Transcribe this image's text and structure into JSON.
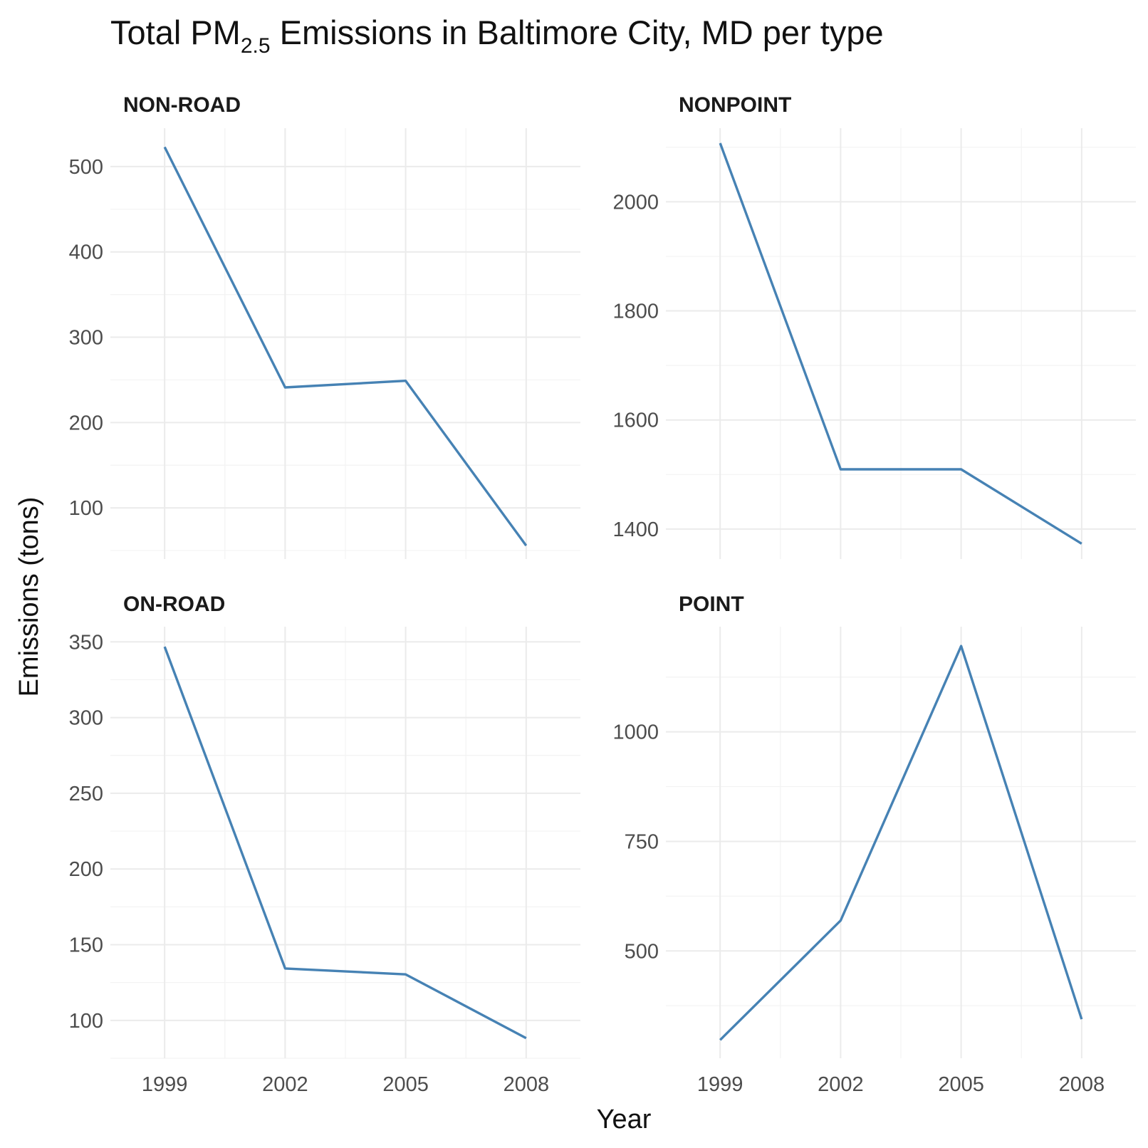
{
  "title": {
    "prefix": "Total PM",
    "subscript": "2.5",
    "suffix": " Emissions in Baltimore City, MD per type"
  },
  "xlabel": "Year",
  "ylabel": "Emissions (tons)",
  "colors": {
    "line": "#4682b4"
  },
  "chart_data": {
    "type": "line",
    "layout": "facet-grid-2x2",
    "grid": true,
    "legend": "none",
    "x": [
      1999,
      2002,
      2005,
      2008
    ],
    "x_ticks": [
      "1999",
      "2002",
      "2005",
      "2008"
    ],
    "panels": [
      {
        "name": "NON-ROAD",
        "values": [
          522.9,
          241.2,
          248.9,
          55.8
        ],
        "ylim": [
          40,
          545
        ],
        "y_ticks": [
          100,
          200,
          300,
          400,
          500
        ],
        "y_tick_labels": [
          "100",
          "200",
          "300",
          "400",
          "500"
        ]
      },
      {
        "name": "NONPOINT",
        "values": [
          2107.6,
          1509.5,
          1509.5,
          1373.2
        ],
        "ylim": [
          1345,
          2135
        ],
        "y_ticks": [
          1400,
          1600,
          1800,
          2000
        ],
        "y_tick_labels": [
          "1400",
          "1600",
          "1800",
          "2000"
        ]
      },
      {
        "name": "ON-ROAD",
        "values": [
          346.8,
          134.3,
          130.4,
          88.3
        ],
        "ylim": [
          75,
          360
        ],
        "y_ticks": [
          100,
          150,
          200,
          250,
          300,
          350
        ],
        "y_tick_labels": [
          "100",
          "150",
          "200",
          "250",
          "300",
          "350"
        ]
      },
      {
        "name": "POINT",
        "values": [
          296.8,
          569.3,
          1195.8,
          344.3
        ],
        "ylim": [
          255,
          1240
        ],
        "y_ticks": [
          500,
          750,
          1000
        ],
        "y_tick_labels": [
          "500",
          "750",
          "1000"
        ]
      }
    ]
  }
}
